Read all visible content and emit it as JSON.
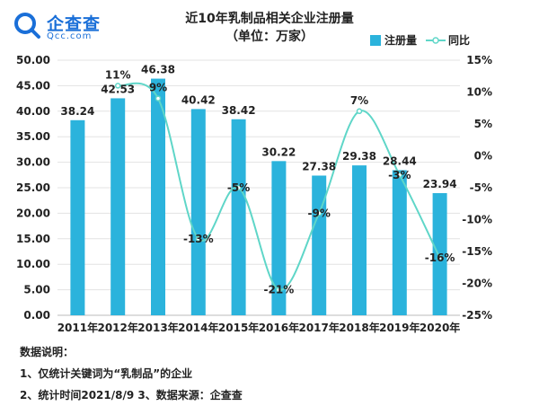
{
  "brand": {
    "name_cn": "企查查",
    "name_en": "Qcc.com"
  },
  "chart_data": {
    "type": "bar",
    "title": "近10年乳制品相关企业注册量",
    "subtitle": "（单位：万家）",
    "categories": [
      "2011年",
      "2012年",
      "2013年",
      "2014年",
      "2015年",
      "2016年",
      "2017年",
      "2018年",
      "2019年",
      "2020年"
    ],
    "series": [
      {
        "name": "注册量",
        "type": "bar",
        "axis": "left",
        "color": "#2bb3dc",
        "values": [
          38.24,
          42.53,
          46.38,
          40.42,
          38.42,
          30.22,
          27.38,
          29.38,
          28.44,
          23.94
        ],
        "labels": [
          "38.24",
          "42.53",
          "46.38",
          "40.42",
          "38.42",
          "30.22",
          "27.38",
          "29.38",
          "28.44",
          "23.94"
        ]
      },
      {
        "name": "同比",
        "type": "line",
        "axis": "right",
        "color": "#5fd6c8",
        "values": [
          null,
          11,
          9,
          -13,
          -5,
          -21,
          -9,
          7,
          -3,
          -16
        ],
        "labels": [
          "",
          "11%",
          "9%",
          "-13%",
          "-5%",
          "-21%",
          "-9%",
          "7%",
          "-3%",
          "-16%"
        ]
      }
    ],
    "y_left": {
      "min": 0,
      "max": 50,
      "step": 5,
      "ticks": [
        "0.00",
        "5.00",
        "10.00",
        "15.00",
        "20.00",
        "25.00",
        "30.00",
        "35.00",
        "40.00",
        "45.00",
        "50.00"
      ]
    },
    "y_right": {
      "min": -25,
      "max": 15,
      "step": 5,
      "ticks": [
        "-25%",
        "-20%",
        "-15%",
        "-10%",
        "-5%",
        "0%",
        "5%",
        "10%",
        "15%"
      ]
    },
    "grid": true,
    "legend_position": "top-right"
  },
  "notes": {
    "heading": "数据说明：",
    "line1": "1、仅统计关键词为“乳制品”的企业",
    "line2": "2、统计时间2021/8/9   3、数据来源：企查查"
  }
}
